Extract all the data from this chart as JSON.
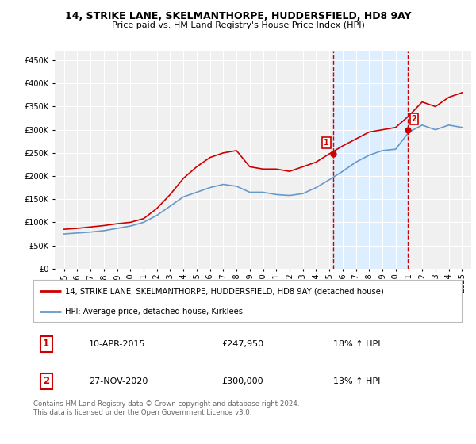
{
  "title": "14, STRIKE LANE, SKELMANTHORPE, HUDDERSFIELD, HD8 9AY",
  "subtitle": "Price paid vs. HM Land Registry's House Price Index (HPI)",
  "ylim": [
    0,
    470000
  ],
  "yticks": [
    0,
    50000,
    100000,
    150000,
    200000,
    250000,
    300000,
    350000,
    400000,
    450000
  ],
  "background_color": "#ffffff",
  "plot_bg_color": "#f0f0f0",
  "grid_color": "#ffffff",
  "legend_label_red": "14, STRIKE LANE, SKELMANTHORPE, HUDDERSFIELD, HD8 9AY (detached house)",
  "legend_label_blue": "HPI: Average price, detached house, Kirklees",
  "point1_date": "10-APR-2015",
  "point1_price": "£247,950",
  "point1_hpi": "18% ↑ HPI",
  "point2_date": "27-NOV-2020",
  "point2_price": "£300,000",
  "point2_hpi": "13% ↑ HPI",
  "footer": "Contains HM Land Registry data © Crown copyright and database right 2024.\nThis data is licensed under the Open Government Licence v3.0.",
  "red_color": "#cc0000",
  "blue_color": "#6699cc",
  "shaded_color": "#ddeeff",
  "years_x": [
    1995,
    1996,
    1997,
    1998,
    1999,
    2000,
    2001,
    2002,
    2003,
    2004,
    2005,
    2006,
    2007,
    2008,
    2009,
    2010,
    2011,
    2012,
    2013,
    2014,
    2015,
    2016,
    2017,
    2018,
    2019,
    2020,
    2021,
    2022,
    2023,
    2024,
    2025
  ],
  "red_values": [
    85000,
    87000,
    90000,
    93000,
    97000,
    100000,
    108000,
    130000,
    160000,
    195000,
    220000,
    240000,
    250000,
    255000,
    220000,
    215000,
    215000,
    210000,
    220000,
    230000,
    248000,
    265000,
    280000,
    295000,
    300000,
    305000,
    330000,
    360000,
    350000,
    370000,
    380000
  ],
  "blue_values": [
    75000,
    77000,
    79000,
    82000,
    87000,
    92000,
    100000,
    115000,
    135000,
    155000,
    165000,
    175000,
    182000,
    178000,
    165000,
    165000,
    160000,
    158000,
    162000,
    175000,
    192000,
    210000,
    230000,
    245000,
    255000,
    258000,
    295000,
    310000,
    300000,
    310000,
    305000
  ],
  "point1_x": 2015.27,
  "point1_y": 247950,
  "point2_x": 2020.9,
  "point2_y": 300000,
  "vline1_x": 2015.27,
  "vline2_x": 2020.9,
  "xlim": [
    1994.3,
    2025.7
  ]
}
